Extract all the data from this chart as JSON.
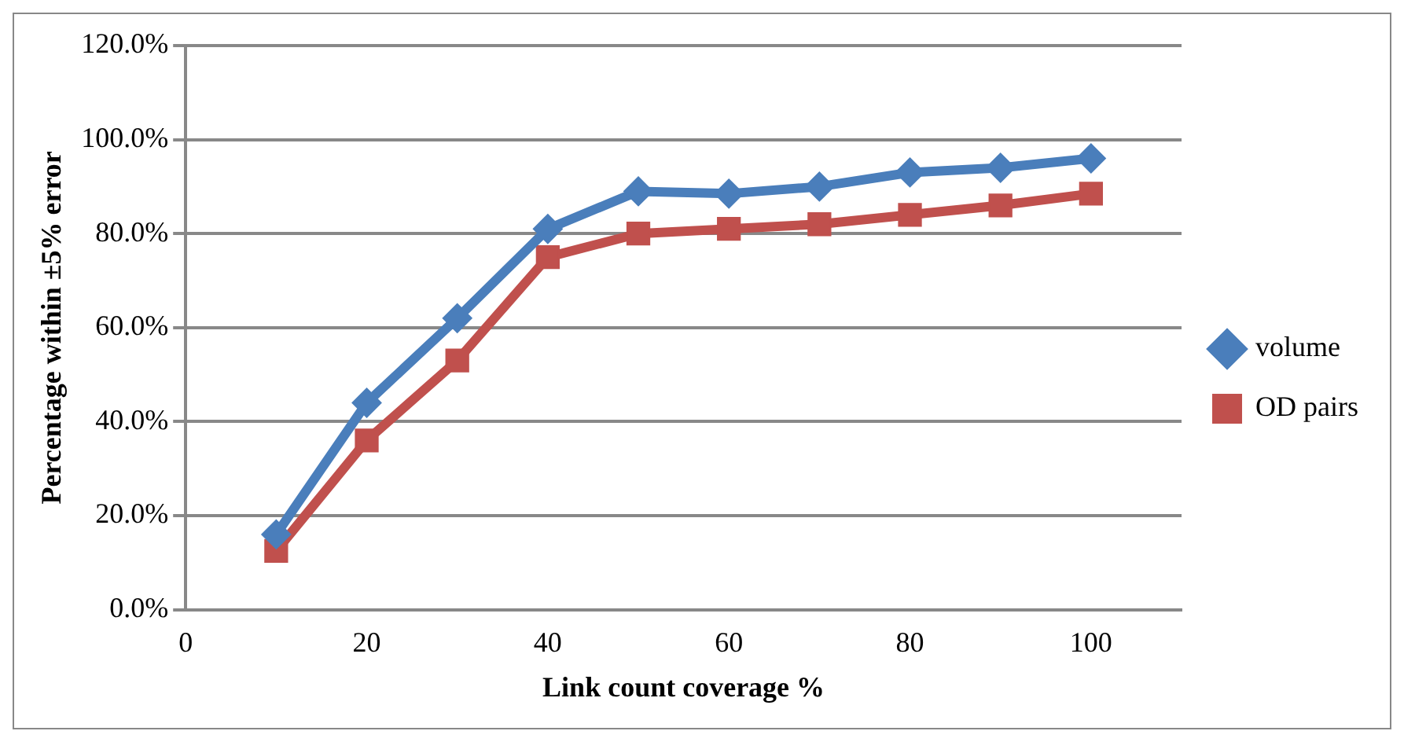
{
  "chart_data": {
    "type": "line",
    "xlabel": "Link count coverage %",
    "ylabel": "Percentage within ±5% error",
    "x": [
      10,
      20,
      30,
      40,
      50,
      60,
      70,
      80,
      90,
      100
    ],
    "series": [
      {
        "name": "volume",
        "color": "#4a7ebb",
        "marker": "diamond",
        "values": [
          16,
          44,
          62,
          81,
          89,
          88.5,
          90,
          93,
          94,
          96
        ]
      },
      {
        "name": "OD pairs",
        "color": "#c0504d",
        "marker": "square",
        "values": [
          12.5,
          36,
          53,
          75,
          80,
          81,
          82,
          84,
          86,
          88.5
        ]
      }
    ],
    "xlim": [
      0,
      110
    ],
    "xticks": [
      0,
      20,
      40,
      60,
      80,
      100
    ],
    "ylim": [
      0,
      120
    ],
    "yticks": [
      {
        "value": 0,
        "label": "0.0%"
      },
      {
        "value": 20,
        "label": "20.0%"
      },
      {
        "value": 40,
        "label": "40.0%"
      },
      {
        "value": 60,
        "label": "60.0%"
      },
      {
        "value": 80,
        "label": "80.0%"
      },
      {
        "value": 100,
        "label": "100.0%"
      },
      {
        "value": 120,
        "label": "120.0%"
      }
    ],
    "grid": "y",
    "legend": "right"
  }
}
